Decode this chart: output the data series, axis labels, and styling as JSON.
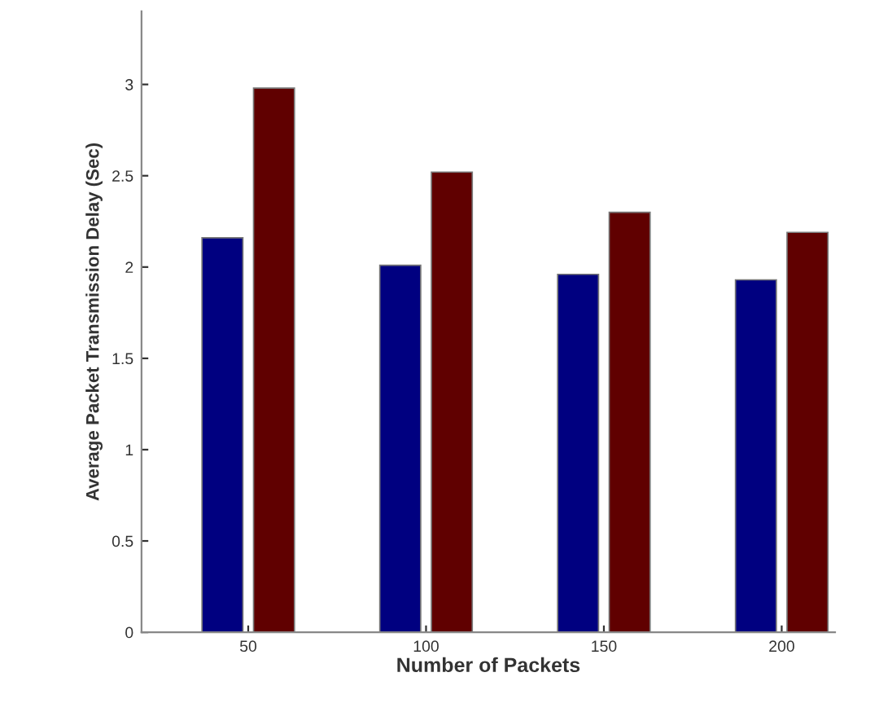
{
  "chart_data": {
    "type": "bar",
    "xlabel": "Number of Packets",
    "ylabel": "Average Packet Transmission Delay (Sec)",
    "categories": [
      "50",
      "100",
      "150",
      "200"
    ],
    "series": [
      {
        "color": "#000080",
        "values": [
          2.16,
          2.01,
          1.96,
          1.93
        ]
      },
      {
        "color": "#600000",
        "values": [
          2.98,
          2.52,
          2.3,
          2.19
        ]
      }
    ],
    "ylim": [
      0,
      3.4
    ],
    "yticks": [
      0,
      0.5,
      1,
      1.5,
      2,
      2.5,
      3
    ],
    "grid": false
  }
}
